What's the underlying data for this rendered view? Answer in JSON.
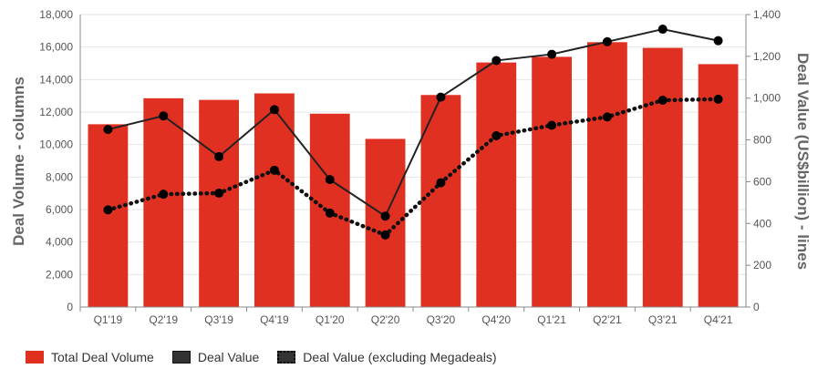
{
  "chart_data": {
    "type": "bar",
    "title": "",
    "categories": [
      "Q1'19",
      "Q2'19",
      "Q3'19",
      "Q4'19",
      "Q1'20",
      "Q2'20",
      "Q3'20",
      "Q4'20",
      "Q1'21",
      "Q2'21",
      "Q3'21",
      "Q4'21"
    ],
    "series": [
      {
        "name": "Total Deal Volume",
        "type": "bar",
        "axis": "left",
        "values": [
          11250,
          12850,
          12750,
          13150,
          11900,
          10350,
          13050,
          15050,
          15400,
          16300,
          15950,
          14950
        ]
      },
      {
        "name": "Deal Value",
        "type": "line",
        "axis": "right",
        "values": [
          850,
          915,
          720,
          945,
          610,
          435,
          1005,
          1180,
          1210,
          1270,
          1330,
          1275
        ]
      },
      {
        "name": "Deal Value (excluding Megadeals)",
        "type": "line-dotted",
        "axis": "right",
        "values": [
          465,
          540,
          545,
          655,
          450,
          345,
          595,
          820,
          870,
          910,
          990,
          995
        ]
      }
    ],
    "ylabel": "Deal Volume - columns",
    "y2label": "Deal Value (US$billion) - lines",
    "ylim": [
      0,
      18000
    ],
    "y2lim": [
      0,
      1400
    ],
    "yticks": [
      "0",
      "2,000",
      "4,000",
      "6,000",
      "8,000",
      "10,000",
      "12,000",
      "14,000",
      "16,000",
      "18,000"
    ],
    "y2ticks": [
      "0",
      "200",
      "400",
      "600",
      "800",
      "1,000",
      "1,200",
      "1,400"
    ],
    "colors": {
      "bar": "#e03022",
      "line": "#222222",
      "dotted": "#111111"
    },
    "legend_position": "bottom-left"
  },
  "legend": {
    "items": [
      {
        "label": "Total Deal Volume"
      },
      {
        "label": "Deal Value"
      },
      {
        "label": "Deal Value (excluding Megadeals)"
      }
    ]
  }
}
